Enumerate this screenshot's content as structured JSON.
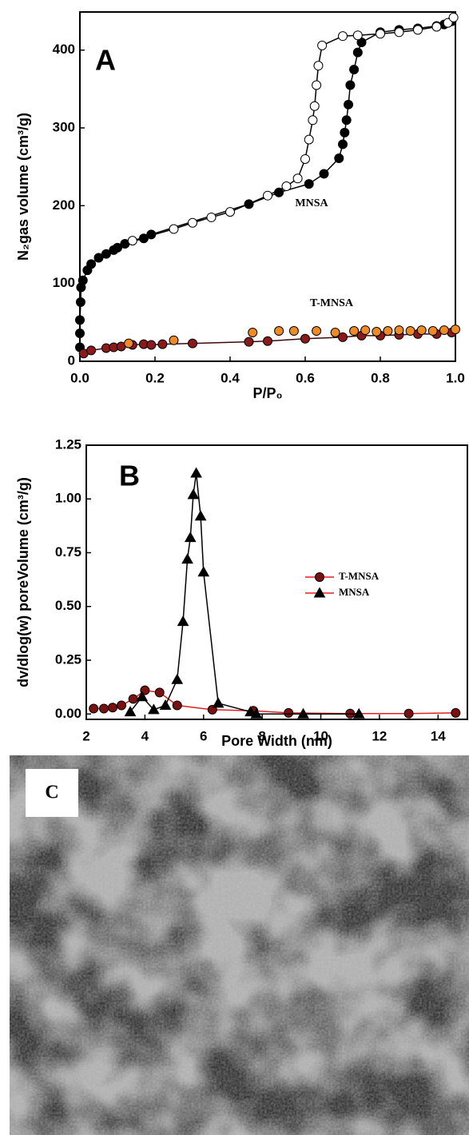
{
  "chart_data": [
    {
      "type": "line",
      "x_label": "P/P₀",
      "y_label": "N₂gas volume (cm³/g)",
      "annotations": [
        "A",
        "MNSA",
        "T-MNSA"
      ],
      "xlim": [
        0,
        1
      ],
      "ylim": [
        0,
        449
      ],
      "xticks": [
        {
          "value": 0,
          "label": "0.0"
        },
        0.2,
        0.4,
        0.6,
        0.8,
        {
          "value": 1,
          "label": "1.0"
        }
      ],
      "yticks": [
        0,
        100,
        200,
        300,
        400
      ],
      "series": [
        {
          "color": "#000000",
          "marker": "circle",
          "marker_fill": "#000000",
          "x": [
            0,
            0,
            0,
            0.002,
            0.003,
            0.008,
            0.02,
            0.03,
            0.05,
            0.07,
            0.09,
            0.1,
            0.12,
            0.17,
            0.19,
            0.45,
            0.53,
            0.61,
            0.65,
            0.69,
            0.7,
            0.705,
            0.71,
            0.715,
            0.72,
            0.73,
            0.74,
            0.75,
            0.8,
            0.85,
            0.9,
            0.95,
            0.97,
            0.99
          ],
          "values": [
            18,
            36,
            53,
            76,
            95,
            104,
            117,
            125,
            133,
            138,
            143,
            146,
            151,
            158,
            163,
            202,
            217,
            228,
            241,
            261,
            279,
            294,
            310,
            330,
            355,
            375,
            397,
            410,
            423,
            426,
            428,
            431,
            433,
            437
          ]
        },
        {
          "color": "#000000",
          "marker": "circle",
          "marker_fill": "#ffffff",
          "x": [
            0.14,
            0.25,
            0.3,
            0.35,
            0.4,
            0.5,
            0.55,
            0.58,
            0.6,
            0.61,
            0.62,
            0.625,
            0.63,
            0.635,
            0.645,
            0.7,
            0.74,
            0.8,
            0.85,
            0.9,
            0.95,
            0.98,
            0.995
          ],
          "values": [
            155,
            170,
            178,
            185,
            192,
            213,
            225,
            235,
            260,
            285,
            310,
            328,
            355,
            380,
            406,
            418,
            419,
            421,
            423,
            426,
            430,
            435,
            442
          ]
        },
        {
          "color": "#3a0a0a",
          "marker": "circle",
          "marker_fill": "#8b1a1a",
          "x": [
            0.01,
            0.03,
            0.07,
            0.09,
            0.11,
            0.14,
            0.17,
            0.19,
            0.22,
            0.3,
            0.45,
            0.5,
            0.6,
            0.7,
            0.75,
            0.8,
            0.85,
            0.9,
            0.95,
            0.99
          ],
          "values": [
            10,
            14,
            17,
            18,
            19,
            21,
            22,
            21,
            22,
            23,
            25,
            26,
            29,
            31,
            33,
            33,
            34,
            35,
            35,
            37
          ]
        },
        {
          "color": "#3a0a0a",
          "marker": "circle",
          "marker_fill": "#f08a24",
          "line": false,
          "x": [
            0.13,
            0.25,
            0.46,
            0.53,
            0.57,
            0.63,
            0.68,
            0.73,
            0.76,
            0.79,
            0.82,
            0.85,
            0.88,
            0.91,
            0.94,
            0.97,
            1.0
          ],
          "values": [
            23,
            27,
            37,
            39,
            39,
            39,
            37,
            39,
            40,
            38,
            39,
            40,
            39,
            40,
            39,
            40,
            41
          ]
        }
      ]
    },
    {
      "type": "line",
      "x_label": "Pore Width (nm)",
      "y_label": "dv/dlog(w) poreVolume (cm³/g)",
      "annotations": [
        "B"
      ],
      "legend": "right-center",
      "xlim": [
        2,
        15
      ],
      "ylim": [
        -0.025,
        1.25
      ],
      "xticks": [
        2,
        4,
        6,
        8,
        10,
        12,
        14
      ],
      "yticks": [
        {
          "value": 0,
          "label": "0.00"
        },
        {
          "value": 0.25,
          "label": "0.25"
        },
        {
          "value": 0.5,
          "label": "0.50"
        },
        {
          "value": 0.75,
          "label": "0.75"
        },
        {
          "value": 1,
          "label": "1.00"
        },
        {
          "value": 1.25,
          "label": "1.25"
        }
      ],
      "series": [
        {
          "name": "T-MNSA",
          "color": "#e02020",
          "marker": "circle",
          "marker_fill": "#7a1010",
          "x": [
            2.25,
            2.6,
            2.9,
            3.2,
            3.6,
            4.0,
            4.5,
            5.1,
            6.3,
            7.7,
            8.9,
            11.0,
            13.0,
            14.6
          ],
          "values": [
            0.025,
            0.025,
            0.03,
            0.04,
            0.07,
            0.11,
            0.1,
            0.04,
            0.02,
            0.015,
            0.005,
            0.002,
            0.002,
            0.005
          ]
        },
        {
          "name": "MNSA",
          "color": "#000000",
          "marker": "triangle",
          "marker_fill": "#000000",
          "x": [
            3.5,
            3.9,
            4.3,
            4.7,
            5.1,
            5.3,
            5.45,
            5.55,
            5.65,
            5.75,
            5.9,
            6.0,
            6.5,
            7.6,
            7.8,
            9.4,
            11.3
          ],
          "values": [
            0.01,
            0.08,
            0.02,
            0.04,
            0.16,
            0.43,
            0.72,
            0.82,
            1.02,
            1.12,
            0.92,
            0.66,
            0.05,
            0.01,
            0,
            0,
            0
          ]
        }
      ]
    }
  ],
  "image_panel": {
    "label": "C"
  }
}
